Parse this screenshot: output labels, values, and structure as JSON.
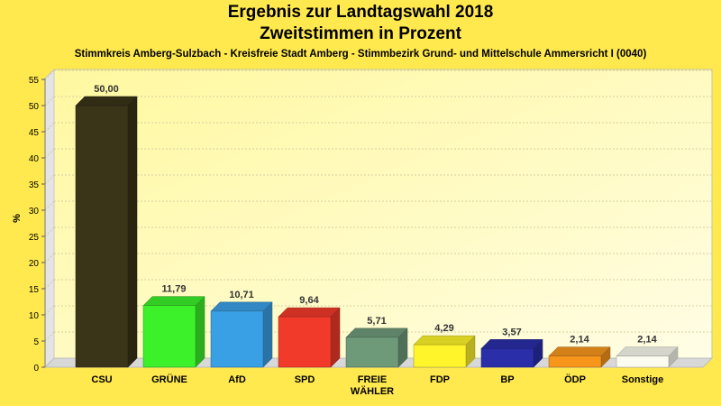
{
  "chart_data": {
    "type": "bar",
    "title": "Ergebnis zur Landtagswahl 2018",
    "title_line2": "Zweitstimmen in Prozent",
    "subtitle": "Stimmkreis Amberg-Sulzbach - Kreisfreie Stadt Amberg - Stimmbezirk Grund- und Mittelschule Ammersricht I (0040)",
    "ylabel": "%",
    "xlabel": "",
    "ylim": [
      0,
      55
    ],
    "yticks": [
      0,
      5,
      10,
      15,
      20,
      25,
      30,
      35,
      40,
      45,
      50,
      55
    ],
    "grid": true,
    "legend": "none",
    "categories": [
      {
        "label": [
          "CSU"
        ],
        "value": 50.0,
        "value_label": "50,00",
        "color": "#3a3418"
      },
      {
        "label": [
          "GRÜNE"
        ],
        "value": 11.79,
        "value_label": "11,79",
        "color": "#3cf02a"
      },
      {
        "label": [
          "AfD"
        ],
        "value": 10.71,
        "value_label": "10,71",
        "color": "#3aa0e6"
      },
      {
        "label": [
          "SPD"
        ],
        "value": 9.64,
        "value_label": "9,64",
        "color": "#f23a2a"
      },
      {
        "label": [
          "FREIE",
          "WÄHLER"
        ],
        "value": 5.71,
        "value_label": "5,71",
        "color": "#6e9a7a"
      },
      {
        "label": [
          "FDP"
        ],
        "value": 4.29,
        "value_label": "4,29",
        "color": "#fff52a"
      },
      {
        "label": [
          "BP"
        ],
        "value": 3.57,
        "value_label": "3,57",
        "color": "#2a2ea8"
      },
      {
        "label": [
          "ÖDP"
        ],
        "value": 2.14,
        "value_label": "2,14",
        "color": "#f8961c"
      },
      {
        "label": [
          "Sonstige"
        ],
        "value": 2.14,
        "value_label": "2,14",
        "color": "#fbfbef"
      }
    ]
  }
}
